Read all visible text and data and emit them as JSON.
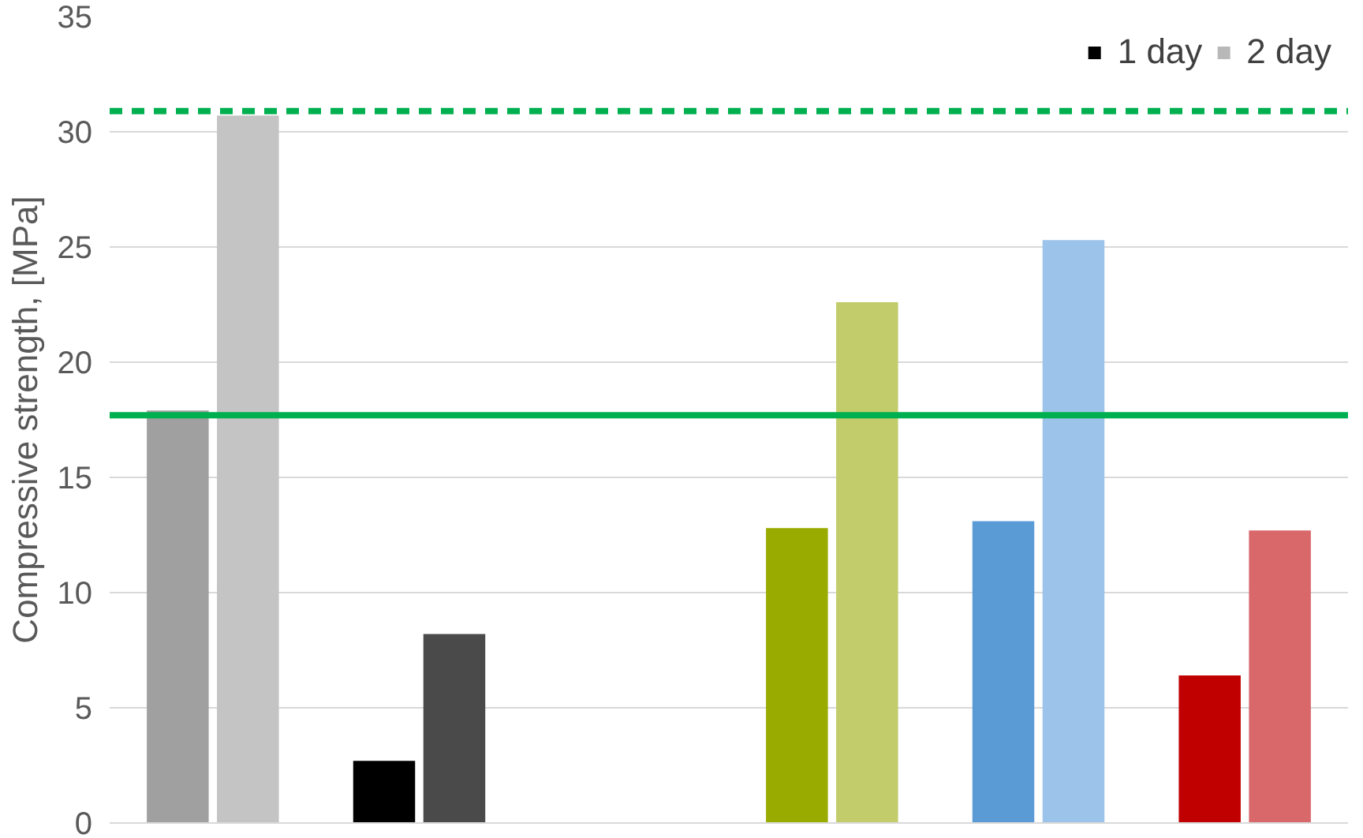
{
  "chart_data": {
    "type": "bar",
    "ylabel": "Compressive strength, [MPa]",
    "categories": [
      null,
      null,
      null,
      null,
      null,
      null
    ],
    "series": [
      {
        "name": "1 day",
        "color": "#000000",
        "colors": [
          "#a0a0a0",
          "#000000",
          "#000000",
          "#9aab00",
          "#5b9bd5",
          "#c00000"
        ],
        "values": [
          17.9,
          2.7,
          null,
          12.8,
          13.1,
          6.4
        ]
      },
      {
        "name": "2 day",
        "color": "#b8b8b8",
        "colors": [
          "#c4c4c4",
          "#4a4a4a",
          "#4a4a4a",
          "#c3cc6a",
          "#9cc3ea",
          "#d9686b"
        ],
        "values": [
          30.7,
          8.2,
          null,
          22.6,
          25.3,
          12.7
        ]
      }
    ],
    "ylim": [
      0,
      35
    ],
    "yticks": [
      0,
      5,
      10,
      15,
      20,
      25,
      30,
      35
    ],
    "grid": "y",
    "legend": "top right",
    "ref_lines": [
      {
        "axis": "y",
        "value": 30.9,
        "color": "#00b050",
        "line_style": "dashed"
      },
      {
        "axis": "y",
        "value": 17.7,
        "color": "#00b050",
        "line_style": "solid"
      }
    ]
  }
}
